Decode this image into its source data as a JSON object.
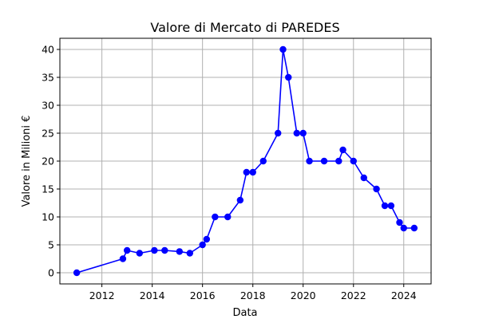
{
  "chart_data": {
    "type": "line",
    "title": "Valore di Mercato di PAREDES",
    "xlabel": "Data",
    "ylabel": "Valore in Milioni €",
    "xlim": [
      "2010-05-01",
      "2025-02-01"
    ],
    "ylim": [
      -2,
      42
    ],
    "x_ticks": [
      {
        "value": "2012-01-01",
        "label": "2012"
      },
      {
        "value": "2014-01-01",
        "label": "2014"
      },
      {
        "value": "2016-01-01",
        "label": "2016"
      },
      {
        "value": "2018-01-01",
        "label": "2018"
      },
      {
        "value": "2020-01-01",
        "label": "2020"
      },
      {
        "value": "2022-01-01",
        "label": "2022"
      },
      {
        "value": "2024-01-01",
        "label": "2024"
      }
    ],
    "y_ticks": [
      0,
      5,
      10,
      15,
      20,
      25,
      30,
      35,
      40
    ],
    "grid": true,
    "color": "#0000ff",
    "marker": "circle",
    "series": [
      {
        "points": [
          {
            "x": "2011-01-01",
            "y": 0
          },
          {
            "x": "2012-11-01",
            "y": 2.5
          },
          {
            "x": "2013-01-01",
            "y": 4
          },
          {
            "x": "2013-07-01",
            "y": 3.5
          },
          {
            "x": "2014-02-01",
            "y": 4
          },
          {
            "x": "2014-07-01",
            "y": 4
          },
          {
            "x": "2015-02-01",
            "y": 3.8
          },
          {
            "x": "2015-07-01",
            "y": 3.5
          },
          {
            "x": "2016-01-01",
            "y": 5
          },
          {
            "x": "2016-03-01",
            "y": 6
          },
          {
            "x": "2016-07-01",
            "y": 10
          },
          {
            "x": "2017-01-01",
            "y": 10
          },
          {
            "x": "2017-07-01",
            "y": 13
          },
          {
            "x": "2017-10-01",
            "y": 18
          },
          {
            "x": "2018-01-01",
            "y": 18
          },
          {
            "x": "2018-06-01",
            "y": 20
          },
          {
            "x": "2019-01-01",
            "y": 25
          },
          {
            "x": "2019-03-15",
            "y": 40
          },
          {
            "x": "2019-06-01",
            "y": 35
          },
          {
            "x": "2019-10-01",
            "y": 25
          },
          {
            "x": "2020-01-01",
            "y": 25
          },
          {
            "x": "2020-04-01",
            "y": 20
          },
          {
            "x": "2020-11-01",
            "y": 20
          },
          {
            "x": "2021-06-01",
            "y": 20
          },
          {
            "x": "2021-08-01",
            "y": 22
          },
          {
            "x": "2022-01-01",
            "y": 20
          },
          {
            "x": "2022-06-01",
            "y": 17
          },
          {
            "x": "2022-12-01",
            "y": 15
          },
          {
            "x": "2023-04-01",
            "y": 12
          },
          {
            "x": "2023-07-01",
            "y": 12
          },
          {
            "x": "2023-11-01",
            "y": 9
          },
          {
            "x": "2024-01-01",
            "y": 8
          },
          {
            "x": "2024-06-01",
            "y": 8
          }
        ]
      }
    ]
  }
}
